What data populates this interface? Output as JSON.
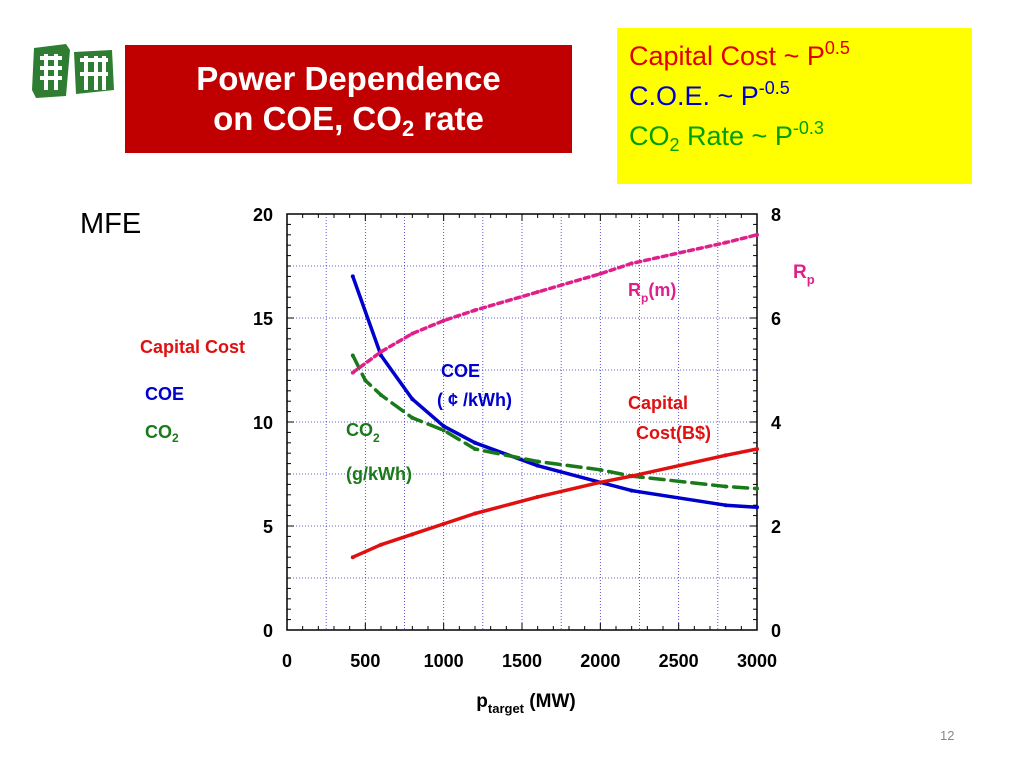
{
  "slide": {
    "title_line1": "Power Dependence",
    "title_line2_prefix": "on COE, CO",
    "title_line2_sub": "2",
    "title_line2_suffix": " rate",
    "mfe_label": "MFE",
    "page_number": "12"
  },
  "scaling": {
    "line1": {
      "text": "Capital Cost ~ P",
      "exp": "0.5",
      "color": "#e00000"
    },
    "line2": {
      "text": "C.O.E. ~ P",
      "exp": "-0.5",
      "color": "#0000cc"
    },
    "line3": {
      "text_prefix": "CO",
      "text_sub": "2",
      "text_suffix": " Rate ~ P",
      "exp": "-0.3",
      "color": "#00a000"
    }
  },
  "left_legend": {
    "capital_cost": "Capital Cost",
    "coe": "COE",
    "co2_prefix": "CO",
    "co2_sub": "2"
  },
  "chart_data": {
    "type": "line",
    "xlabel_main": "p",
    "xlabel_sub": "target",
    "xlabel_unit": " (MW)",
    "xlim": [
      0,
      3000
    ],
    "ylim_left": [
      0,
      20
    ],
    "ylim_right": [
      0,
      8
    ],
    "x_ticks": [
      0,
      500,
      1000,
      1500,
      2000,
      2500,
      3000
    ],
    "y_left_ticks": [
      0,
      5,
      10,
      15,
      20
    ],
    "y_right_ticks": [
      0,
      2,
      4,
      6,
      8
    ],
    "right_axis_label_main": "R",
    "right_axis_label_sub": "p",
    "grid": true,
    "series": [
      {
        "key": "coe",
        "axis": "left",
        "color": "#0000cc",
        "style": "solid",
        "label_line1": "COE",
        "label_line2": "( ¢ /kWh)",
        "x": [
          420,
          600,
          800,
          1000,
          1200,
          1600,
          2000,
          2200,
          2800,
          3000
        ],
        "y": [
          17.0,
          13.2,
          11.1,
          9.8,
          9.0,
          7.9,
          7.1,
          6.7,
          6.0,
          5.9
        ]
      },
      {
        "key": "co2",
        "axis": "left",
        "color": "#1a7a1a",
        "style": "dashed",
        "label_main": "CO",
        "label_sub": "2",
        "label_unit": "(g/kWh)",
        "x": [
          420,
          500,
          600,
          800,
          1000,
          1200,
          1600,
          2000,
          2200,
          2800,
          3000
        ],
        "y": [
          13.2,
          12.0,
          11.3,
          10.2,
          9.6,
          8.7,
          8.1,
          7.7,
          7.4,
          6.9,
          6.8
        ]
      },
      {
        "key": "capital_cost",
        "axis": "left",
        "color": "#e01010",
        "style": "solid",
        "label_line1": "Capital",
        "label_line2": "Cost(B$)",
        "x": [
          420,
          600,
          800,
          1000,
          1200,
          1600,
          2000,
          2200,
          2800,
          3000
        ],
        "y": [
          3.5,
          4.1,
          4.6,
          5.1,
          5.6,
          6.4,
          7.1,
          7.4,
          8.4,
          8.7
        ]
      },
      {
        "key": "rp",
        "axis": "right",
        "color": "#e0208a",
        "style": "dotted",
        "label_main": "R",
        "label_sub": "p",
        "label_unit": "(m)",
        "x": [
          420,
          600,
          800,
          1000,
          1200,
          1600,
          2000,
          2200,
          2800,
          3000
        ],
        "y": [
          4.95,
          5.35,
          5.7,
          5.95,
          6.15,
          6.5,
          6.85,
          7.05,
          7.45,
          7.6
        ]
      }
    ]
  }
}
